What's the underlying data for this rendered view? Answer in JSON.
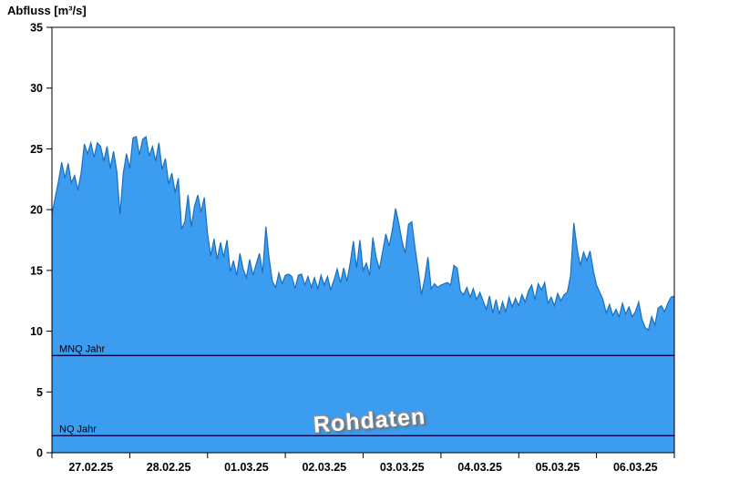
{
  "chart_data": {
    "type": "area",
    "title": "Abfluss [m³/s]",
    "watermark": "Rohdaten",
    "series_name": "Abfluss",
    "unit": "m³/s",
    "ylim": [
      0,
      35
    ],
    "y_ticks": [
      0,
      5,
      10,
      15,
      20,
      25,
      30,
      35
    ],
    "x_tick_labels": [
      "27.02.25",
      "28.02.25",
      "01.03.25",
      "02.03.25",
      "03.03.25",
      "04.03.25",
      "05.03.25",
      "06.03.25"
    ],
    "day_boundary_indices": [
      0,
      24,
      48,
      72,
      96,
      120,
      144,
      168,
      192
    ],
    "label_center_indices": [
      12,
      36,
      60,
      84,
      108,
      132,
      156,
      180
    ],
    "values": [
      19.6,
      21.0,
      22.3,
      23.9,
      22.6,
      23.8,
      22.2,
      22.8,
      21.6,
      23.0,
      25.4,
      24.6,
      25.5,
      24.3,
      25.5,
      25.2,
      24.0,
      25.2,
      23.4,
      24.8,
      23.2,
      19.6,
      23.0,
      24.6,
      23.4,
      25.9,
      26.0,
      24.5,
      25.8,
      26.0,
      24.4,
      25.2,
      24.0,
      25.5,
      23.3,
      24.2,
      22.1,
      23.0,
      21.4,
      22.6,
      18.4,
      19.0,
      21.2,
      18.6,
      20.3,
      21.2,
      19.8,
      21.0,
      18.0,
      16.2,
      17.6,
      15.9,
      17.3,
      16.1,
      17.5,
      14.9,
      15.8,
      14.6,
      16.4,
      15.1,
      14.4,
      15.9,
      14.6,
      15.5,
      16.4,
      14.8,
      18.6,
      16.0,
      14.1,
      13.6,
      14.8,
      13.9,
      14.6,
      14.7,
      14.5,
      13.5,
      14.6,
      14.7,
      13.8,
      14.5,
      13.6,
      14.4,
      13.5,
      14.6,
      13.8,
      14.5,
      13.4,
      14.2,
      15.1,
      14.0,
      15.2,
      14.1,
      15.6,
      17.4,
      15.2,
      17.5,
      15.0,
      15.6,
      14.6,
      17.7,
      16.1,
      15.1,
      16.5,
      18.0,
      17.0,
      18.3,
      20.1,
      18.9,
      17.4,
      16.4,
      18.8,
      19.0,
      16.9,
      15.0,
      13.0,
      14.3,
      16.1,
      13.5,
      13.9,
      13.6,
      13.8,
      13.9,
      14.0,
      13.8,
      15.4,
      15.2,
      13.3,
      13.0,
      13.6,
      12.8,
      13.5,
      12.6,
      13.2,
      12.5,
      11.8,
      12.9,
      11.5,
      12.6,
      11.4,
      12.4,
      11.6,
      12.8,
      12.0,
      12.7,
      12.1,
      13.0,
      12.4,
      13.3,
      13.8,
      12.6,
      13.9,
      13.4,
      14.0,
      12.3,
      12.8,
      12.1,
      13.1,
      12.5,
      13.0,
      13.2,
      14.6,
      18.9,
      16.8,
      15.4,
      16.5,
      15.8,
      16.6,
      15.0,
      13.8,
      13.2,
      12.6,
      11.5,
      12.2,
      11.3,
      11.8,
      11.2,
      12.3,
      11.4,
      12.0,
      11.2,
      11.6,
      12.4,
      11.0,
      10.3,
      10.1,
      11.2,
      10.5,
      11.9,
      12.1,
      11.6,
      12.3,
      12.8,
      12.9
    ],
    "reference_lines": [
      {
        "label": "MNQ Jahr",
        "value": 8.0
      },
      {
        "label": "NQ Jahr",
        "value": 1.4
      }
    ],
    "colors": {
      "area": "#3B9CF0",
      "line": "#1A6FC0",
      "ref_line": "#000050",
      "axis": "#000000"
    }
  }
}
